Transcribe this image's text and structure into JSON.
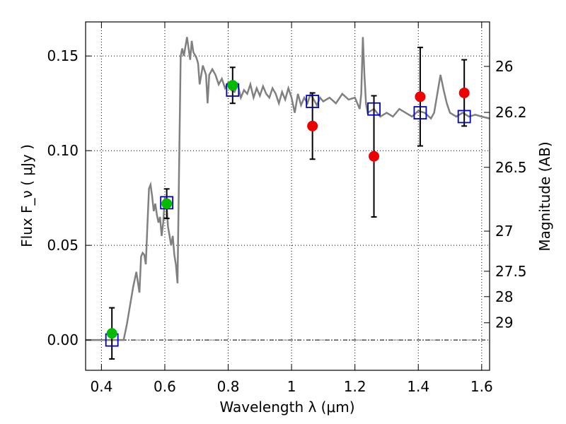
{
  "chart_data": {
    "type": "scatter",
    "xlabel": "Wavelength  λ (μm)",
    "ylabel": "Flux  F_ν  ( μJy )",
    "y2label": "Magnitude (AB)",
    "xlim": [
      0.35,
      1.625
    ],
    "ylim": [
      -0.016,
      0.168
    ],
    "x_ticks": [
      0.4,
      0.6,
      0.8,
      1.0,
      1.2,
      1.4,
      1.6
    ],
    "x_tick_labels": [
      "0.4",
      "0.6",
      "0.8",
      "1",
      "1.2",
      "1.4",
      "1.6"
    ],
    "y_ticks": [
      0.0,
      0.05,
      0.1,
      0.15
    ],
    "y_tick_labels": [
      "0.00",
      "0.05",
      "0.10",
      "0.15"
    ],
    "mag_ticks": [
      {
        "label": "26",
        "flux": 0.1445
      },
      {
        "label": "26.2",
        "flux": 0.1202
      },
      {
        "label": "26.5",
        "flux": 0.0912
      },
      {
        "label": "27",
        "flux": 0.0575
      },
      {
        "label": "27.5",
        "flux": 0.0363
      },
      {
        "label": "28",
        "flux": 0.0229
      },
      {
        "label": "29",
        "flux": 0.0091
      }
    ],
    "grid": true,
    "zero_line": 0.0,
    "model_spectrum": {
      "color": "#808080",
      "x": [
        0.35,
        0.47,
        0.48,
        0.49,
        0.5,
        0.51,
        0.52,
        0.525,
        0.53,
        0.535,
        0.54,
        0.545,
        0.55,
        0.555,
        0.56,
        0.565,
        0.57,
        0.575,
        0.58,
        0.585,
        0.59,
        0.595,
        0.6,
        0.605,
        0.61,
        0.62,
        0.625,
        0.63,
        0.635,
        0.64,
        0.645,
        0.65,
        0.655,
        0.66,
        0.665,
        0.67,
        0.68,
        0.685,
        0.69,
        0.7,
        0.705,
        0.71,
        0.72,
        0.73,
        0.735,
        0.74,
        0.75,
        0.76,
        0.77,
        0.78,
        0.79,
        0.8,
        0.81,
        0.82,
        0.83,
        0.84,
        0.85,
        0.86,
        0.87,
        0.88,
        0.89,
        0.9,
        0.91,
        0.92,
        0.93,
        0.94,
        0.95,
        0.96,
        0.97,
        0.98,
        0.99,
        1.0,
        1.01,
        1.02,
        1.03,
        1.04,
        1.05,
        1.06,
        1.07,
        1.08,
        1.09,
        1.1,
        1.12,
        1.14,
        1.16,
        1.18,
        1.2,
        1.215,
        1.22,
        1.225,
        1.23,
        1.235,
        1.24,
        1.26,
        1.28,
        1.3,
        1.32,
        1.34,
        1.36,
        1.38,
        1.4,
        1.42,
        1.44,
        1.45,
        1.46,
        1.47,
        1.48,
        1.49,
        1.5,
        1.52,
        1.54,
        1.56,
        1.58,
        1.6,
        1.625
      ],
      "y": [
        0.0,
        0.0,
        0.008,
        0.018,
        0.028,
        0.036,
        0.025,
        0.044,
        0.046,
        0.045,
        0.04,
        0.06,
        0.08,
        0.082,
        0.076,
        0.068,
        0.072,
        0.066,
        0.062,
        0.065,
        0.055,
        0.062,
        0.075,
        0.073,
        0.06,
        0.05,
        0.055,
        0.045,
        0.04,
        0.03,
        0.09,
        0.15,
        0.154,
        0.15,
        0.155,
        0.16,
        0.148,
        0.158,
        0.152,
        0.149,
        0.146,
        0.135,
        0.145,
        0.14,
        0.125,
        0.14,
        0.143,
        0.14,
        0.135,
        0.138,
        0.133,
        0.136,
        0.132,
        0.131,
        0.135,
        0.128,
        0.132,
        0.13,
        0.135,
        0.128,
        0.133,
        0.129,
        0.134,
        0.13,
        0.128,
        0.133,
        0.13,
        0.125,
        0.131,
        0.127,
        0.133,
        0.128,
        0.12,
        0.13,
        0.124,
        0.128,
        0.125,
        0.13,
        0.127,
        0.124,
        0.128,
        0.126,
        0.128,
        0.125,
        0.13,
        0.127,
        0.128,
        0.122,
        0.13,
        0.16,
        0.14,
        0.125,
        0.12,
        0.122,
        0.118,
        0.12,
        0.118,
        0.122,
        0.12,
        0.118,
        0.121,
        0.12,
        0.117,
        0.12,
        0.13,
        0.14,
        0.132,
        0.125,
        0.12,
        0.118,
        0.12,
        0.118,
        0.119,
        0.118,
        0.117
      ]
    },
    "series": [
      {
        "marker": "open-square",
        "color": "#0000cc",
        "points": [
          {
            "x": 0.433,
            "y": 0.0
          },
          {
            "x": 0.606,
            "y": 0.0725
          },
          {
            "x": 0.814,
            "y": 0.132
          },
          {
            "x": 1.066,
            "y": 0.126
          },
          {
            "x": 1.26,
            "y": 0.122
          },
          {
            "x": 1.406,
            "y": 0.12
          },
          {
            "x": 1.545,
            "y": 0.118
          }
        ]
      },
      {
        "marker": "filled-circle",
        "color": "#00bb00",
        "points": [
          {
            "x": 0.433,
            "y": 0.0035,
            "yerr": [
              0.0135,
              0.0135
            ]
          },
          {
            "x": 0.606,
            "y": 0.072,
            "yerr": [
              0.0078,
              0.0078
            ]
          },
          {
            "x": 0.814,
            "y": 0.1345,
            "yerr": [
              0.0095,
              0.0095
            ]
          }
        ]
      },
      {
        "marker": "filled-circle",
        "color": "#ee0000",
        "points": [
          {
            "x": 1.066,
            "y": 0.113,
            "yerr": [
              0.0175,
              0.0175
            ]
          },
          {
            "x": 1.26,
            "y": 0.097,
            "yerr": [
              0.032,
              0.032
            ]
          },
          {
            "x": 1.406,
            "y": 0.1285,
            "yerr": [
              0.026,
              0.026
            ]
          },
          {
            "x": 1.545,
            "y": 0.1305,
            "yerr": [
              0.0175,
              0.0175
            ]
          }
        ]
      }
    ]
  }
}
